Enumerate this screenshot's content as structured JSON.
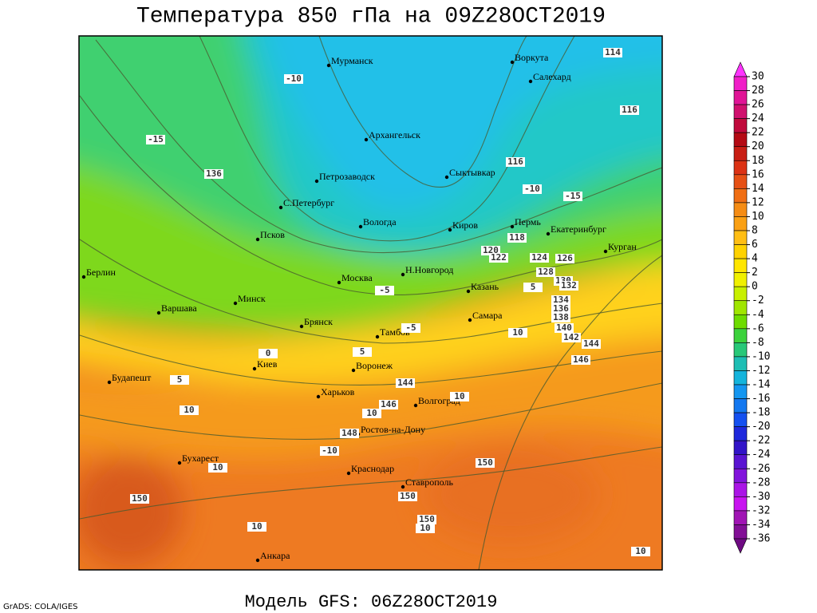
{
  "title": "Температура 850 гПа на 09Z28OCT2019",
  "subtitle": "Модель GFS: 06Z28OCT2019",
  "credit": "GrADS: COLA/IGES",
  "cities": [
    "Мурманск",
    "Воркута",
    "Салехард",
    "Архангельск",
    "Петрозаводск",
    "Сыктывкар",
    "С.Петербург",
    "Вологда",
    "Киров",
    "Пермь",
    "Екатеринбург",
    "Курган",
    "Псков",
    "Берлин",
    "Москва",
    "Н.Новгород",
    "Казань",
    "Минск",
    "Варшава",
    "Самара",
    "Брянск",
    "Тамбов",
    "Киев",
    "Воронеж",
    "Будапешт",
    "Харьков",
    "Волгоград",
    "Ростов-на-Дону",
    "Бухарест",
    "Краснодар",
    "Ставрополь",
    "Анкара"
  ],
  "contour_labels": [
    114,
    -10,
    116,
    -15,
    136,
    116,
    -10,
    -15,
    118,
    120,
    122,
    124,
    126,
    128,
    130,
    132,
    134,
    136,
    138,
    140,
    142,
    144,
    146,
    144,
    146,
    148,
    150,
    150,
    150,
    150,
    10,
    10,
    10,
    10,
    5,
    10,
    -10,
    10,
    10,
    -5,
    5,
    5,
    0,
    -5,
    10
  ],
  "colorbar": {
    "levels": [
      30,
      28,
      26,
      24,
      22,
      20,
      18,
      16,
      14,
      12,
      10,
      8,
      6,
      4,
      2,
      0,
      -2,
      -4,
      -6,
      -8,
      -10,
      -12,
      -14,
      -16,
      -18,
      -20,
      -22,
      -24,
      -26,
      -28,
      -30,
      -32,
      -34,
      -36
    ],
    "colors": [
      "#ff33ff",
      "#f01ec8",
      "#e01496",
      "#d0106e",
      "#c00a3c",
      "#b40a14",
      "#c81e14",
      "#dc3214",
      "#e65014",
      "#f06e14",
      "#f58c14",
      "#faa014",
      "#ffbe14",
      "#ffd200",
      "#ffe600",
      "#f0f000",
      "#c8f000",
      "#a0e600",
      "#6edc00",
      "#3cd23c",
      "#28c878",
      "#1ebeb4",
      "#14b4dc",
      "#1496f0",
      "#1478f0",
      "#1450f0",
      "#1e28dc",
      "#3214c8",
      "#5a14d2",
      "#8214dc",
      "#aa14e6",
      "#c814f0",
      "#a014b4",
      "#820f96",
      "#6e0a82"
    ]
  }
}
